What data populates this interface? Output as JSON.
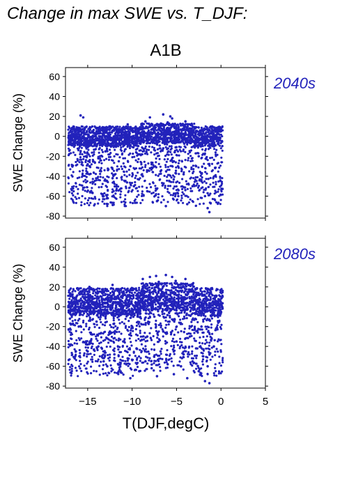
{
  "figure": {
    "title": "Change in max SWE vs. T_DJF:",
    "scenario": "A1B",
    "xlabel": "T(DJF,degC)",
    "accent_color": "#2222bb"
  },
  "chart_data": [
    {
      "type": "scatter",
      "title": "2040s",
      "xlabel": "T(DJF,degC)",
      "ylabel": "SWE Change (%)",
      "xlim": [
        -17.5,
        5
      ],
      "ylim": [
        -82,
        69
      ],
      "xticks": [
        -15,
        -10,
        -5,
        0,
        5
      ],
      "yticks": [
        -80,
        -60,
        -40,
        -20,
        0,
        20,
        40,
        60
      ],
      "grid": false,
      "color": "#2222bb",
      "points": [
        [
          -17,
          -5
        ],
        [
          -16.5,
          -8
        ],
        [
          -16,
          -12
        ],
        [
          -15.8,
          21
        ],
        [
          -15.5,
          19
        ],
        [
          -15.2,
          -20
        ],
        [
          -15,
          -28
        ],
        [
          -14.8,
          -38
        ],
        [
          -14.5,
          5
        ],
        [
          -14,
          -10
        ],
        [
          -13.8,
          -22
        ],
        [
          -13.5,
          -35
        ],
        [
          -13.2,
          -60
        ],
        [
          -13,
          -15
        ],
        [
          -12.5,
          10
        ],
        [
          -12.2,
          -42
        ],
        [
          -12,
          0
        ],
        [
          -11.5,
          -25
        ],
        [
          -11,
          -8
        ],
        [
          -10.8,
          -45
        ],
        [
          -10.5,
          12
        ],
        [
          -10.2,
          -30
        ],
        [
          -10,
          -5
        ],
        [
          -9.8,
          -50
        ],
        [
          -9.5,
          3
        ],
        [
          -9.2,
          -18
        ],
        [
          -9,
          8
        ],
        [
          -8.8,
          -40
        ],
        [
          -8.5,
          15
        ],
        [
          -8.3,
          -55
        ],
        [
          -8,
          19
        ],
        [
          -7.8,
          -28
        ],
        [
          -7.5,
          5
        ],
        [
          -7.2,
          -65
        ],
        [
          -7,
          10
        ],
        [
          -6.8,
          -35
        ],
        [
          -6.5,
          -12
        ],
        [
          -6.2,
          -70
        ],
        [
          -6,
          14
        ],
        [
          -5.8,
          -45
        ],
        [
          -5.5,
          18
        ],
        [
          -5.3,
          -25
        ],
        [
          -5,
          8
        ],
        [
          -4.8,
          -60
        ],
        [
          -4.5,
          12
        ],
        [
          -4.2,
          -38
        ],
        [
          -4,
          15
        ],
        [
          -3.8,
          -68
        ],
        [
          -3.5,
          -15
        ],
        [
          -3.2,
          -50
        ],
        [
          -3,
          8
        ],
        [
          -2.8,
          -30
        ],
        [
          -2.5,
          -20
        ],
        [
          -2.2,
          -45
        ],
        [
          -2,
          5
        ],
        [
          -1.8,
          -60
        ],
        [
          -1.5,
          -72
        ],
        [
          -1.3,
          -76
        ],
        [
          -1,
          10
        ],
        [
          -0.8,
          -10
        ],
        [
          -0.5,
          8
        ],
        [
          -0.3,
          -8
        ],
        [
          0,
          5
        ],
        [
          -6.5,
          22
        ],
        [
          -5.7,
          20
        ],
        [
          -7.6,
          4
        ],
        [
          -6.9,
          -2
        ],
        [
          -4.9,
          -5
        ],
        [
          -8.9,
          -3
        ],
        [
          -11.7,
          -1
        ]
      ]
    },
    {
      "type": "scatter",
      "title": "2080s",
      "xlabel": "T(DJF,degC)",
      "ylabel": "SWE Change (%)",
      "xlim": [
        -17.5,
        5
      ],
      "ylim": [
        -82,
        69
      ],
      "xticks": [
        -15,
        -10,
        -5,
        0,
        5
      ],
      "yticks": [
        -80,
        -60,
        -40,
        -20,
        0,
        20,
        40,
        60
      ],
      "grid": false,
      "color": "#2222bb",
      "points": [
        [
          -17,
          -12
        ],
        [
          -16.5,
          -3
        ],
        [
          -16,
          -20
        ],
        [
          -15.5,
          10
        ],
        [
          -15.2,
          -35
        ],
        [
          -15,
          -45
        ],
        [
          -14.8,
          20
        ],
        [
          -14.5,
          -28
        ],
        [
          -14,
          -15
        ],
        [
          -13.8,
          -40
        ],
        [
          -13.5,
          15
        ],
        [
          -13.2,
          -55
        ],
        [
          -13,
          -10
        ],
        [
          -12.8,
          -60
        ],
        [
          -12.5,
          -25
        ],
        [
          -12.2,
          22
        ],
        [
          -12,
          -48
        ],
        [
          -11.5,
          -5
        ],
        [
          -11,
          -35
        ],
        [
          -10.8,
          12
        ],
        [
          -10.5,
          -52
        ],
        [
          -10.2,
          -72
        ],
        [
          -10,
          -20
        ],
        [
          -9.8,
          18
        ],
        [
          -9.5,
          -42
        ],
        [
          -9.2,
          -65
        ],
        [
          -9,
          5
        ],
        [
          -8.8,
          28
        ],
        [
          -8.5,
          -55
        ],
        [
          -8.3,
          -30
        ],
        [
          -8,
          30
        ],
        [
          -7.8,
          -62
        ],
        [
          -7.5,
          -10
        ],
        [
          -7.2,
          -70
        ],
        [
          -7,
          25
        ],
        [
          -6.8,
          -45
        ],
        [
          -6.5,
          -25
        ],
        [
          -6.2,
          32
        ],
        [
          -6,
          -58
        ],
        [
          -5.8,
          -15
        ],
        [
          -5.5,
          30
        ],
        [
          -5.3,
          -68
        ],
        [
          -5,
          -35
        ],
        [
          -4.8,
          20
        ],
        [
          -4.5,
          -60
        ],
        [
          -4.2,
          -48
        ],
        [
          -4,
          28
        ],
        [
          -3.8,
          -72
        ],
        [
          -3.5,
          -30
        ],
        [
          -3.2,
          -55
        ],
        [
          -3,
          15
        ],
        [
          -2.8,
          -42
        ],
        [
          -2.5,
          -65
        ],
        [
          -2.2,
          -20
        ],
        [
          -2,
          -50
        ],
        [
          -1.8,
          -75
        ],
        [
          -1.5,
          -60
        ],
        [
          -1.3,
          -77
        ],
        [
          -1,
          -8
        ],
        [
          -0.8,
          -40
        ],
        [
          -0.5,
          3
        ],
        [
          -0.3,
          -15
        ],
        [
          0,
          -5
        ],
        [
          -7.3,
          31
        ],
        [
          -5.1,
          26
        ],
        [
          -9.4,
          8
        ],
        [
          -6.6,
          -5
        ],
        [
          -11.2,
          -2
        ],
        [
          -13.9,
          -8
        ],
        [
          -3.4,
          4
        ]
      ]
    }
  ]
}
